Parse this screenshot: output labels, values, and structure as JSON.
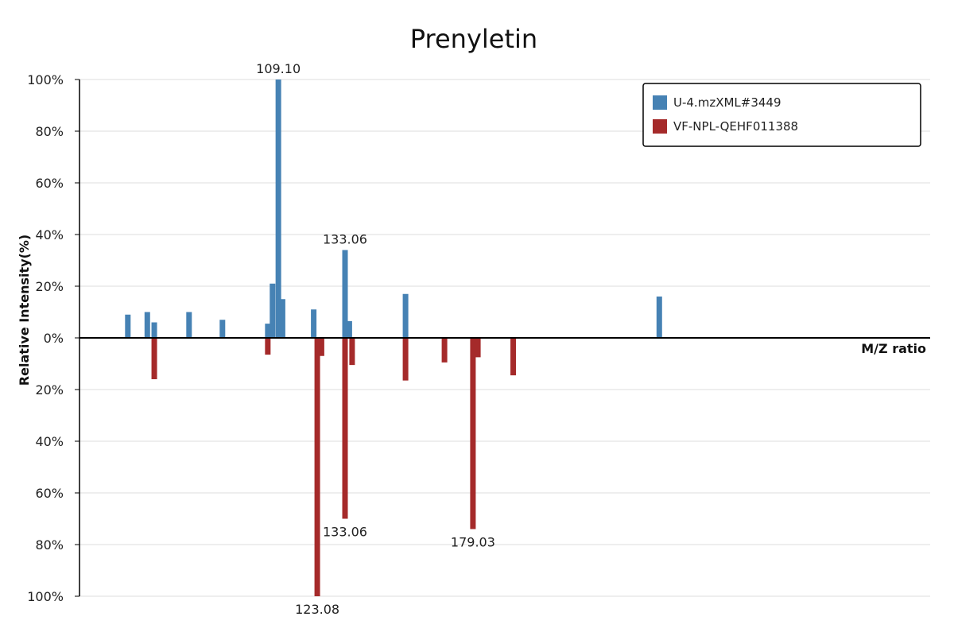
{
  "chart_data": {
    "type": "bar",
    "title": "Prenyletin",
    "xlabel": "M/Z ratio",
    "ylabel": "Relative Intensity(%)",
    "ylim": [
      -100,
      100
    ],
    "y_ticks": [
      "100%",
      "80%",
      "60%",
      "40%",
      "20%",
      "0%",
      "20%",
      "40%",
      "60%",
      "80%",
      "100%"
    ],
    "grid": true,
    "legend_position": "top-right",
    "series": [
      {
        "name": "U-4.mzXML#3449",
        "color": "#4682b4",
        "direction": "up",
        "peaks": [
          {
            "mz": 55.0,
            "intensity": 9
          },
          {
            "mz": 62.0,
            "intensity": 10
          },
          {
            "mz": 64.5,
            "intensity": 6
          },
          {
            "mz": 77.0,
            "intensity": 10
          },
          {
            "mz": 89.0,
            "intensity": 7
          },
          {
            "mz": 105.3,
            "intensity": 5.5
          },
          {
            "mz": 107.0,
            "intensity": 21
          },
          {
            "mz": 109.1,
            "intensity": 100,
            "label": "109.10"
          },
          {
            "mz": 110.6,
            "intensity": 15
          },
          {
            "mz": 121.8,
            "intensity": 11
          },
          {
            "mz": 133.06,
            "intensity": 34,
            "label": "133.06"
          },
          {
            "mz": 134.6,
            "intensity": 6.5
          },
          {
            "mz": 154.8,
            "intensity": 17
          },
          {
            "mz": 246.0,
            "intensity": 16
          }
        ]
      },
      {
        "name": "VF-NPL-QEHF011388",
        "color": "#a52a2a",
        "direction": "down",
        "peaks": [
          {
            "mz": 64.5,
            "intensity": 16
          },
          {
            "mz": 105.3,
            "intensity": 6.5
          },
          {
            "mz": 123.08,
            "intensity": 100,
            "label": "123.08"
          },
          {
            "mz": 124.6,
            "intensity": 7
          },
          {
            "mz": 133.06,
            "intensity": 70,
            "label": "133.06"
          },
          {
            "mz": 135.6,
            "intensity": 10.5
          },
          {
            "mz": 154.8,
            "intensity": 16.5
          },
          {
            "mz": 168.8,
            "intensity": 9.5
          },
          {
            "mz": 179.03,
            "intensity": 74,
            "label": "179.03"
          },
          {
            "mz": 180.8,
            "intensity": 7.5
          },
          {
            "mz": 193.5,
            "intensity": 14.5
          }
        ]
      }
    ]
  }
}
